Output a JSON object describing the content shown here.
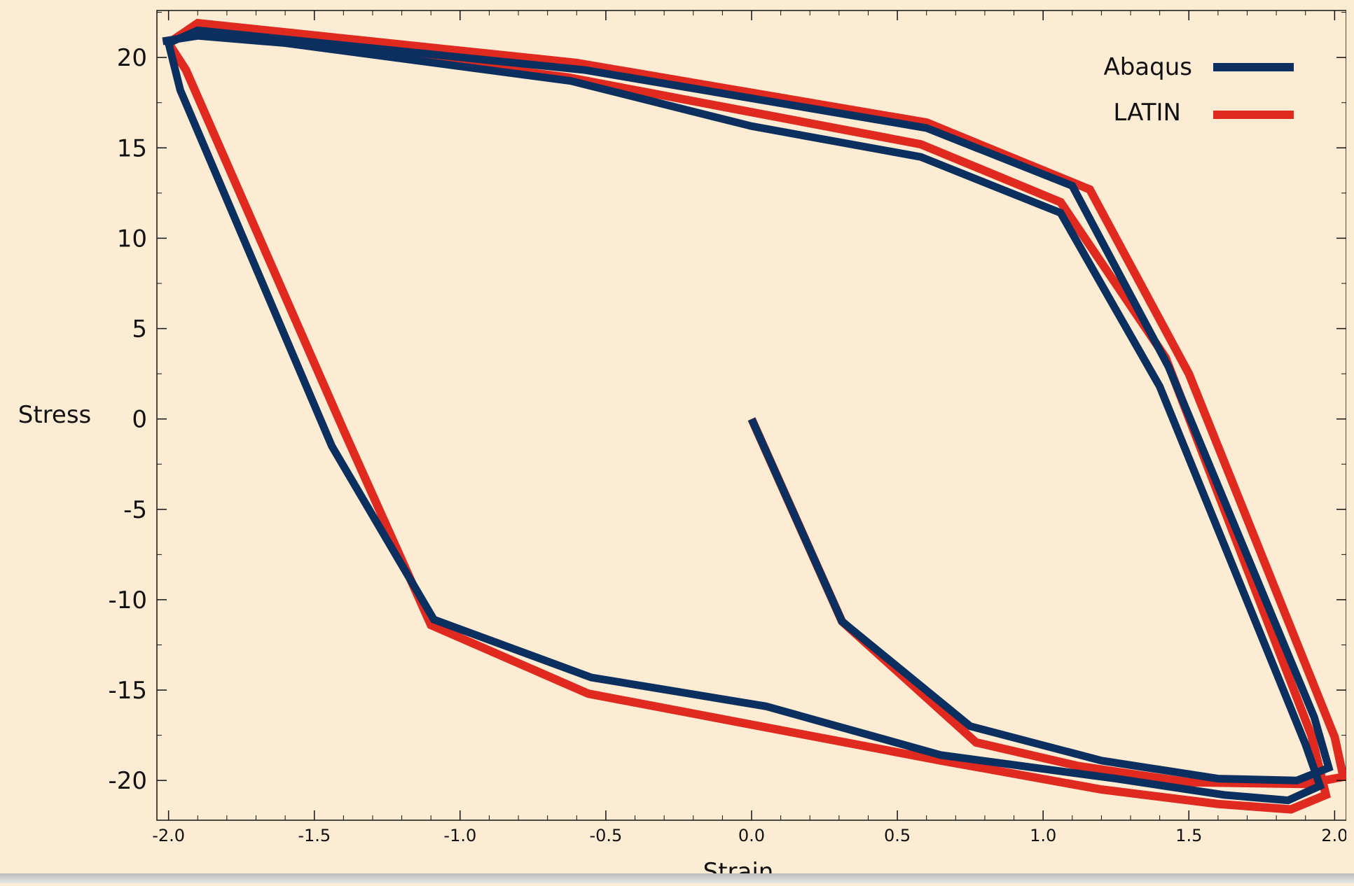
{
  "chart_data": {
    "type": "line",
    "title": "",
    "xlabel": "Strain",
    "ylabel": "Stress",
    "xlim": [
      -2.04,
      2.04
    ],
    "ylim": [
      -22.2,
      22.6
    ],
    "grid": false,
    "legend_position": "top-right",
    "x_ticks": [
      -2.0,
      -1.5,
      -1.0,
      -0.5,
      0.0,
      0.5,
      1.0,
      1.5,
      2.0
    ],
    "x_tick_labels": [
      "-2.0",
      "-1.5",
      "-1.0",
      "-0.5",
      "0.0",
      "0.5",
      "1.0",
      "1.5",
      "2.0"
    ],
    "y_ticks": [
      20,
      15,
      10,
      5,
      0,
      -5,
      -10,
      -15,
      -20
    ],
    "y_tick_labels": [
      "20",
      "15",
      "10",
      "5",
      "0",
      "-5",
      "-10",
      "-15",
      "-20"
    ],
    "series": [
      {
        "name": "LATIN",
        "color": "#e0291f",
        "points": [
          [
            0.0,
            0.0
          ],
          [
            0.31,
            -11.2
          ],
          [
            0.77,
            -17.9
          ],
          [
            1.12,
            -19.2
          ],
          [
            1.5,
            -20.1
          ],
          [
            1.9,
            -20.2
          ],
          [
            2.03,
            -19.8
          ],
          [
            2.0,
            -17.6
          ],
          [
            1.5,
            2.5
          ],
          [
            1.16,
            12.7
          ],
          [
            0.6,
            16.4
          ],
          [
            -0.6,
            19.7
          ],
          [
            -1.9,
            21.9
          ],
          [
            -2.0,
            20.8
          ],
          [
            -1.94,
            19.3
          ],
          [
            -1.4,
            -0.6
          ],
          [
            -1.1,
            -11.4
          ],
          [
            -0.56,
            -15.2
          ],
          [
            0.65,
            -18.9
          ],
          [
            1.2,
            -20.5
          ],
          [
            1.6,
            -21.3
          ],
          [
            1.85,
            -21.6
          ],
          [
            1.97,
            -20.8
          ],
          [
            1.92,
            -17.5
          ],
          [
            1.42,
            3.4
          ],
          [
            1.06,
            12.0
          ],
          [
            0.58,
            15.2
          ],
          [
            -0.63,
            18.9
          ],
          [
            -1.88,
            21.5
          ]
        ]
      },
      {
        "name": "Abaqus",
        "color": "#0b2f5e",
        "points": [
          [
            0.0,
            0.0
          ],
          [
            0.31,
            -11.2
          ],
          [
            0.75,
            -17.0
          ],
          [
            1.2,
            -18.9
          ],
          [
            1.6,
            -19.9
          ],
          [
            1.87,
            -20.0
          ],
          [
            1.98,
            -19.3
          ],
          [
            1.93,
            -16.5
          ],
          [
            1.43,
            2.9
          ],
          [
            1.1,
            12.9
          ],
          [
            0.6,
            16.1
          ],
          [
            -0.57,
            19.3
          ],
          [
            -1.9,
            21.5
          ],
          [
            -2.0,
            20.8
          ],
          [
            -1.96,
            18.2
          ],
          [
            -1.44,
            -1.5
          ],
          [
            -1.09,
            -11.1
          ],
          [
            -0.55,
            -14.3
          ],
          [
            0.05,
            -15.9
          ],
          [
            0.65,
            -18.6
          ],
          [
            1.25,
            -19.9
          ],
          [
            1.62,
            -20.8
          ],
          [
            1.84,
            -21.1
          ],
          [
            1.95,
            -20.3
          ],
          [
            1.9,
            -18.0
          ],
          [
            1.4,
            1.8
          ],
          [
            1.06,
            11.4
          ],
          [
            0.58,
            14.5
          ],
          [
            0.0,
            16.2
          ],
          [
            -0.62,
            18.7
          ],
          [
            -1.6,
            20.8
          ],
          [
            -1.9,
            21.2
          ],
          [
            -2.02,
            20.9
          ]
        ]
      }
    ]
  }
}
